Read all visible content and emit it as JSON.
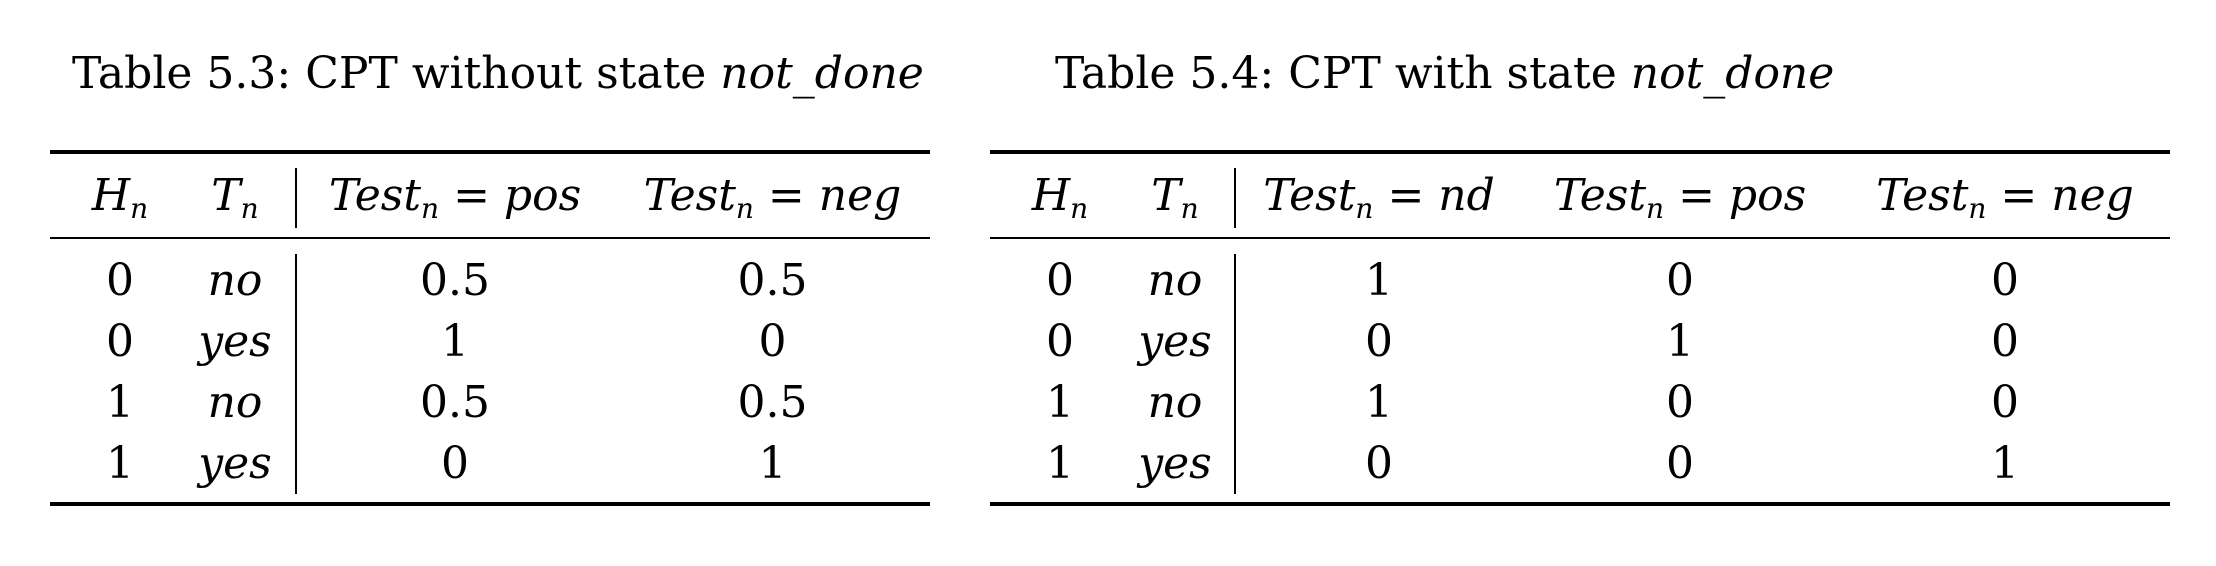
{
  "table1": {
    "caption_prefix": "Table 5.3: CPT without state ",
    "caption_state": "not_done",
    "headers": [
      {
        "main": "H",
        "sub": "n",
        "rest": ""
      },
      {
        "main": "T",
        "sub": "n",
        "rest": ""
      },
      {
        "main": "Test",
        "sub": "n",
        "rest": " = pos"
      },
      {
        "main": "Test",
        "sub": "n",
        "rest": " = neg"
      }
    ],
    "rows": [
      [
        "0",
        "no",
        "0.5",
        "0.5"
      ],
      [
        "0",
        "yes",
        "1",
        "0"
      ],
      [
        "1",
        "no",
        "0.5",
        "0.5"
      ],
      [
        "1",
        "yes",
        "0",
        "1"
      ]
    ]
  },
  "table2": {
    "caption_prefix": "Table 5.4: CPT with state ",
    "caption_state": "not_done",
    "headers": [
      {
        "main": "H",
        "sub": "n",
        "rest": ""
      },
      {
        "main": "T",
        "sub": "n",
        "rest": ""
      },
      {
        "main": "Test",
        "sub": "n",
        "rest": " = nd"
      },
      {
        "main": "Test",
        "sub": "n",
        "rest": " = pos"
      },
      {
        "main": "Test",
        "sub": "n",
        "rest": " = neg"
      }
    ],
    "rows": [
      [
        "0",
        "no",
        "1",
        "0",
        "0"
      ],
      [
        "0",
        "yes",
        "0",
        "1",
        "0"
      ],
      [
        "1",
        "no",
        "1",
        "0",
        "0"
      ],
      [
        "1",
        "yes",
        "0",
        "0",
        "1"
      ]
    ]
  }
}
